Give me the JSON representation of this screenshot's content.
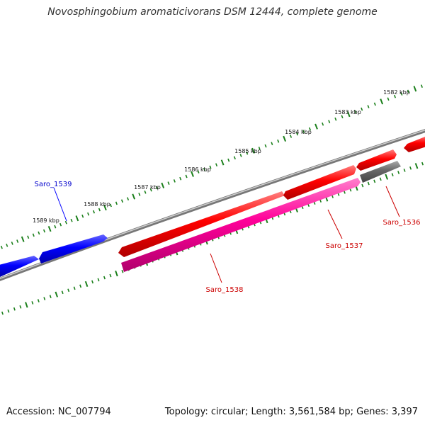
{
  "title": "Novosphingobium aromaticivorans DSM 12444, complete genome",
  "footer": {
    "accession": "Accession: NC_007794",
    "summary": "Topology: circular; Length: 3,561,584 bp; Genes: 3,397"
  },
  "colors": {
    "forward_gene": "#ff0000",
    "reverse_gene_blue": "#0000ff",
    "reverse_gene_pink": "#ff0099",
    "other_gene": "#666666",
    "backbone": "#888888",
    "ruler_ticks": "#1a7f1a"
  },
  "ruler": {
    "ticks": [
      {
        "kbp": 1582,
        "label": "1582 kbp"
      },
      {
        "kbp": 1583,
        "label": "1583 kbp"
      },
      {
        "kbp": 1584,
        "label": "1584 kbp"
      },
      {
        "kbp": 1585,
        "label": "1585 kbp"
      },
      {
        "kbp": 1586,
        "label": "1586 kbp"
      },
      {
        "kbp": 1587,
        "label": "1587 kbp"
      },
      {
        "kbp": 1588,
        "label": "1588 kbp"
      },
      {
        "kbp": 1589,
        "label": "1589 kbp"
      }
    ]
  },
  "genes": [
    {
      "name": "Saro_1539",
      "labeled": true,
      "track": "outer",
      "strand": "reverse",
      "color": "#0000ff",
      "label_color": "#0000cc"
    },
    {
      "name": "Saro_1538",
      "labeled": true,
      "track": "inner",
      "strand": "reverse",
      "color": "#ff0099",
      "label_color": "#cc0000"
    },
    {
      "name": "Saro_1537",
      "labeled": true,
      "track": "outer",
      "strand": "forward",
      "color": "#ff0000",
      "label_color": "#cc0000"
    },
    {
      "name": "Saro_1536",
      "labeled": true,
      "track": "inner",
      "strand": "forward",
      "color": "#666666",
      "label_color": "#cc0000"
    }
  ]
}
